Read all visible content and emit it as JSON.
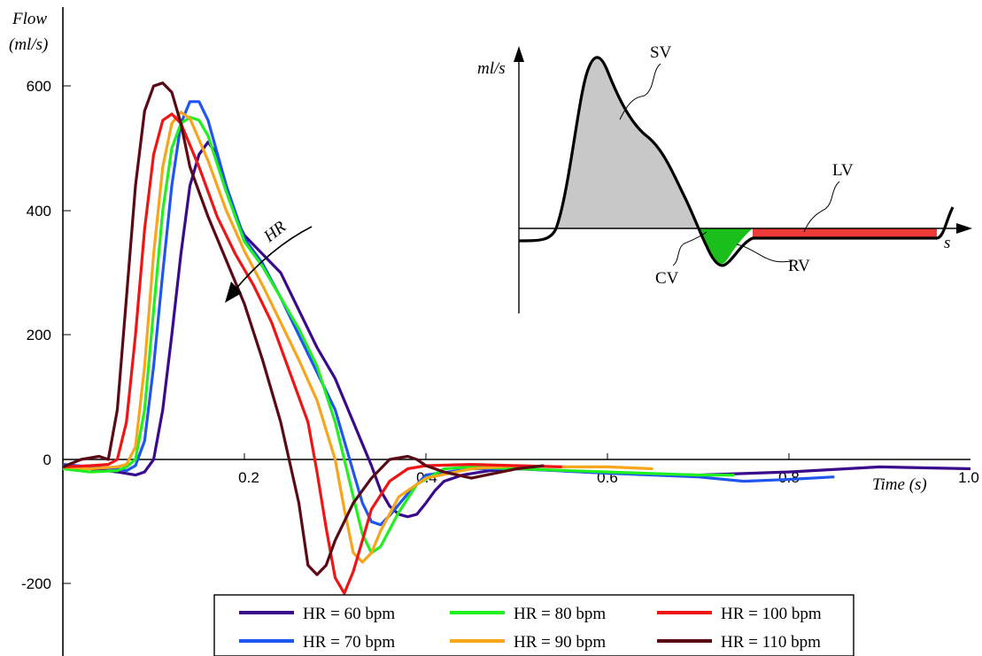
{
  "chart_data": {
    "type": "line",
    "ylabel_line1": "Flow",
    "ylabel_line2": "(ml/s)",
    "xlabel": "Time (s)",
    "xlim": [
      0.0,
      1.0
    ],
    "ylim": [
      -300,
      720
    ],
    "xticks": [
      "0.2",
      "0.4",
      "0.6",
      "0.8",
      "1.0"
    ],
    "yticks": [
      "600",
      "400",
      "200",
      "0",
      "-200"
    ],
    "grid": false,
    "legend_position": "bottom-center",
    "annotation_hr": "HR",
    "series": [
      {
        "name": "HR = 60 bpm",
        "color": "#3a0a8c",
        "x": [
          0.0,
          0.03,
          0.06,
          0.08,
          0.09,
          0.1,
          0.11,
          0.12,
          0.13,
          0.14,
          0.15,
          0.16,
          0.17,
          0.18,
          0.19,
          0.2,
          0.22,
          0.24,
          0.26,
          0.28,
          0.3,
          0.32,
          0.34,
          0.35,
          0.36,
          0.37,
          0.38,
          0.39,
          0.4,
          0.41,
          0.42,
          0.44,
          0.47,
          0.5,
          0.55,
          0.6,
          0.7,
          0.8,
          0.9,
          1.0
        ],
        "y": [
          -8,
          -15,
          -20,
          -25,
          -20,
          0,
          80,
          200,
          330,
          440,
          490,
          510,
          490,
          440,
          390,
          360,
          330,
          300,
          240,
          180,
          130,
          60,
          -10,
          -50,
          -75,
          -88,
          -92,
          -88,
          -70,
          -50,
          -35,
          -25,
          -18,
          -15,
          -18,
          -22,
          -25,
          -20,
          -12,
          -15
        ]
      },
      {
        "name": "HR = 70 bpm",
        "color": "#1f56f0",
        "x": [
          0.0,
          0.03,
          0.06,
          0.07,
          0.08,
          0.09,
          0.1,
          0.11,
          0.12,
          0.13,
          0.14,
          0.15,
          0.16,
          0.18,
          0.2,
          0.22,
          0.24,
          0.26,
          0.28,
          0.3,
          0.31,
          0.32,
          0.33,
          0.34,
          0.35,
          0.36,
          0.38,
          0.4,
          0.45,
          0.5,
          0.6,
          0.7,
          0.75,
          0.8,
          0.85
        ],
        "y": [
          -8,
          -12,
          -15,
          -18,
          -10,
          30,
          150,
          300,
          440,
          540,
          575,
          575,
          545,
          440,
          355,
          315,
          260,
          200,
          140,
          80,
          30,
          -20,
          -70,
          -100,
          -105,
          -90,
          -55,
          -25,
          -15,
          -15,
          -22,
          -28,
          -35,
          -32,
          -28
        ]
      },
      {
        "name": "HR = 80 bpm",
        "color": "#20ef20",
        "x": [
          0.0,
          0.03,
          0.06,
          0.07,
          0.08,
          0.09,
          0.1,
          0.11,
          0.12,
          0.13,
          0.14,
          0.15,
          0.16,
          0.18,
          0.2,
          0.22,
          0.24,
          0.26,
          0.28,
          0.3,
          0.31,
          0.32,
          0.33,
          0.34,
          0.35,
          0.37,
          0.39,
          0.42,
          0.45,
          0.5,
          0.6,
          0.7,
          0.74
        ],
        "y": [
          -15,
          -20,
          -18,
          -12,
          0,
          80,
          240,
          400,
          500,
          540,
          550,
          545,
          520,
          430,
          350,
          310,
          260,
          210,
          150,
          60,
          0,
          -60,
          -120,
          -150,
          -140,
          -85,
          -40,
          -15,
          -12,
          -15,
          -20,
          -25,
          -25
        ]
      },
      {
        "name": "HR = 90 bpm",
        "color": "#f7a51a",
        "x": [
          0.0,
          0.03,
          0.06,
          0.07,
          0.08,
          0.09,
          0.1,
          0.11,
          0.12,
          0.13,
          0.14,
          0.16,
          0.18,
          0.2,
          0.22,
          0.24,
          0.26,
          0.28,
          0.3,
          0.31,
          0.32,
          0.33,
          0.34,
          0.35,
          0.37,
          0.4,
          0.45,
          0.5,
          0.55,
          0.6,
          0.65
        ],
        "y": [
          -12,
          -15,
          -12,
          -8,
          20,
          150,
          330,
          470,
          540,
          558,
          548,
          480,
          400,
          335,
          280,
          220,
          160,
          95,
          0,
          -80,
          -150,
          -165,
          -150,
          -115,
          -60,
          -30,
          -15,
          -10,
          -12,
          -12,
          -15
        ]
      },
      {
        "name": "HR = 100 bpm",
        "color": "#ef1515",
        "x": [
          0.0,
          0.03,
          0.05,
          0.06,
          0.07,
          0.08,
          0.09,
          0.1,
          0.11,
          0.12,
          0.13,
          0.15,
          0.17,
          0.19,
          0.21,
          0.23,
          0.25,
          0.27,
          0.28,
          0.29,
          0.3,
          0.31,
          0.32,
          0.33,
          0.34,
          0.36,
          0.38,
          0.4,
          0.45,
          0.5,
          0.55
        ],
        "y": [
          -12,
          -10,
          -8,
          0,
          60,
          200,
          370,
          490,
          545,
          555,
          540,
          470,
          390,
          330,
          280,
          220,
          140,
          60,
          -20,
          -110,
          -190,
          -215,
          -180,
          -130,
          -80,
          -35,
          -15,
          -10,
          -8,
          -10,
          -12
        ]
      },
      {
        "name": "HR = 110 bpm",
        "color": "#5a0a14",
        "x": [
          0.0,
          0.02,
          0.04,
          0.05,
          0.06,
          0.07,
          0.08,
          0.09,
          0.1,
          0.11,
          0.12,
          0.13,
          0.14,
          0.16,
          0.18,
          0.2,
          0.22,
          0.24,
          0.26,
          0.27,
          0.28,
          0.29,
          0.3,
          0.32,
          0.34,
          0.36,
          0.38,
          0.39,
          0.4,
          0.42,
          0.45,
          0.5,
          0.53
        ],
        "y": [
          -12,
          0,
          5,
          0,
          80,
          260,
          440,
          560,
          600,
          605,
          590,
          540,
          470,
          390,
          320,
          250,
          160,
          60,
          -70,
          -170,
          -185,
          -170,
          -130,
          -70,
          -30,
          0,
          5,
          0,
          -10,
          -20,
          -30,
          -15,
          -10
        ]
      }
    ]
  },
  "inset": {
    "ylabel": "ml/s",
    "xlabel": "s",
    "labels": {
      "sv": "SV",
      "lv": "LV",
      "cv": "CV",
      "rv": "RV"
    },
    "colors": {
      "sv": "#c8c8c8",
      "cv": "#1bbf1b",
      "lv": "#ef3a3a"
    }
  }
}
